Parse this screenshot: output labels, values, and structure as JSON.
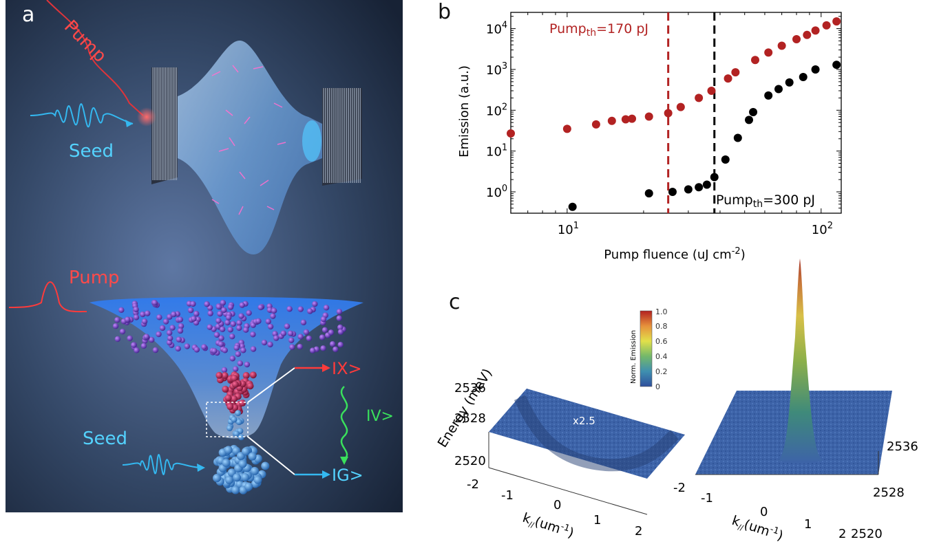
{
  "panel_a": {
    "letter": "a",
    "labels": {
      "pump_top": "Pump",
      "seed_top": "Seed",
      "pump_bottom": "Pump",
      "seed_bottom": "Seed",
      "state_ix": "IX>",
      "state_iv": "IV>",
      "state_ig": "IG>"
    }
  },
  "panel_b": {
    "letter": "b",
    "annotation_red": "Pump",
    "annotation_red_sub": "th",
    "annotation_red_value": "=170 pJ",
    "annotation_black": "Pump",
    "annotation_black_sub": "th",
    "annotation_black_value": "=300 pJ"
  },
  "panel_c": {
    "letter": "c",
    "ylabel": "Energy (meV)",
    "left_plot": {
      "energy_ticks": [
        "2536",
        "2528",
        "2520"
      ],
      "k_ticks": [
        "-2",
        "-1",
        "0",
        "1",
        "2"
      ],
      "scale_label": "x2.5"
    },
    "right_plot": {
      "energy_ticks": [
        "2536",
        "2528",
        "2520"
      ],
      "k_ticks": [
        "-2",
        "-1",
        "0",
        "1",
        "2"
      ]
    },
    "k_label": "k",
    "k_label_sub": "//",
    "k_label_units": "(um",
    "k_label_exp": "-1",
    "k_label_close": ")",
    "colorbar": {
      "title": "Norm. Emission",
      "ticks": [
        "1.0",
        "0.8",
        "0.6",
        "0.4",
        "0.2",
        "0"
      ]
    }
  },
  "chart_data": {
    "type": "scatter",
    "xlabel": "Pump fluence (uJ cm",
    "xlabel_exp": "-2",
    "xlabel_close": ")",
    "ylabel": "Emission (a.u.)",
    "xscale": "log",
    "yscale": "log",
    "xlim": [
      6,
      120
    ],
    "ylim": [
      0.3,
      25000
    ],
    "x_tick_labels": [
      {
        "base": "10",
        "exp": "1",
        "value": 10
      },
      {
        "base": "10",
        "exp": "2",
        "value": 100
      }
    ],
    "y_tick_labels": [
      {
        "base": "10",
        "exp": "0",
        "value": 1
      },
      {
        "base": "10",
        "exp": "1",
        "value": 10
      },
      {
        "base": "10",
        "exp": "2",
        "value": 100
      },
      {
        "base": "10",
        "exp": "3",
        "value": 1000
      },
      {
        "base": "10",
        "exp": "4",
        "value": 10000
      }
    ],
    "vlines": [
      {
        "x": 25,
        "color": "#b22222"
      },
      {
        "x": 38,
        "color": "#000000"
      }
    ],
    "series": [
      {
        "color": "#b22222",
        "x": [
          6,
          10,
          13,
          15,
          17,
          18,
          21,
          25,
          28,
          33,
          37,
          43,
          46,
          55,
          62,
          70,
          80,
          88,
          95,
          105,
          115
        ],
        "y": [
          27,
          35,
          45,
          55,
          60,
          62,
          70,
          85,
          120,
          200,
          300,
          600,
          850,
          1700,
          2600,
          3800,
          5500,
          7000,
          9000,
          12000,
          15000
        ]
      },
      {
        "color": "#000000",
        "x": [
          10.5,
          21,
          26,
          30,
          33,
          35.5,
          38,
          42,
          47,
          52,
          54,
          62,
          68,
          75,
          85,
          95,
          115
        ],
        "y": [
          0.43,
          0.92,
          1.0,
          1.15,
          1.3,
          1.5,
          2.3,
          6.2,
          21,
          58,
          90,
          230,
          330,
          480,
          650,
          1000,
          1300
        ]
      }
    ]
  },
  "colors": {
    "red_series": "#b22222",
    "black_series": "#000000",
    "surface_blue": "#3d63a8"
  }
}
